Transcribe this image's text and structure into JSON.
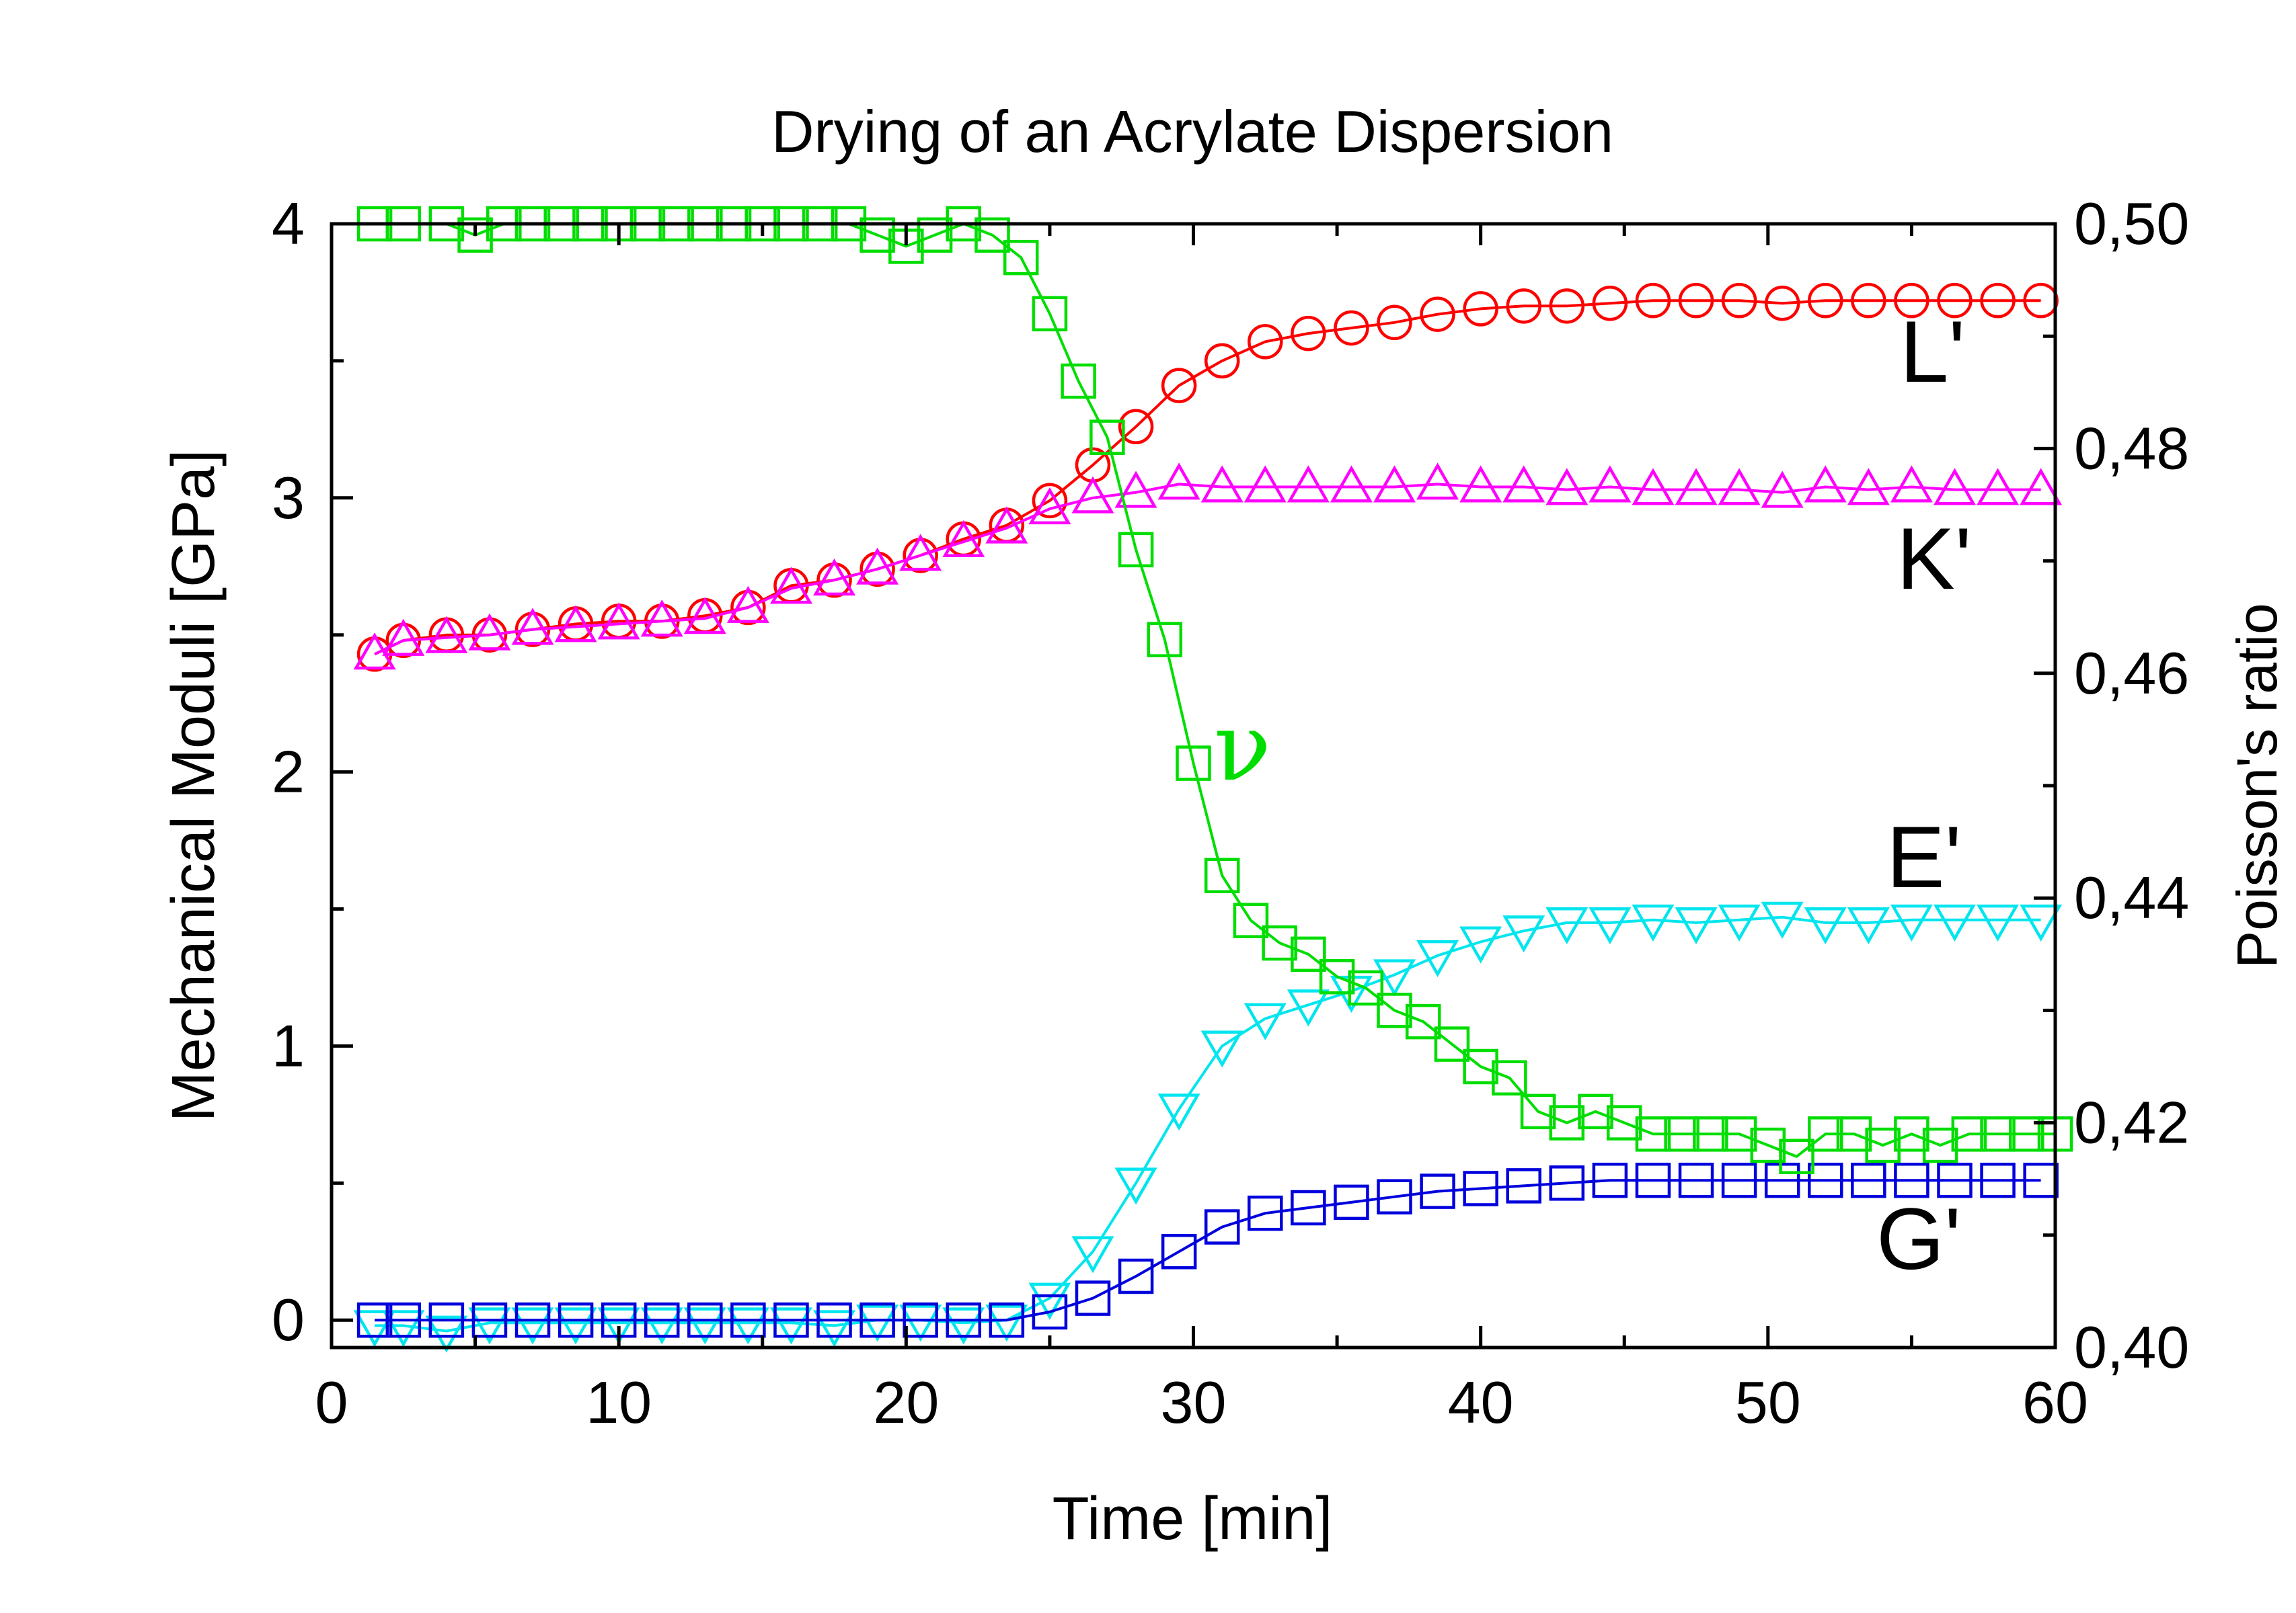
{
  "chart_data": {
    "type": "line",
    "title": "Drying of an Acrylate Dispersion",
    "xlabel": "Time [min]",
    "ylabel": "Mechanical Moduli [GPa]",
    "y2label": "Poisson's ratio",
    "xlim": [
      0,
      60
    ],
    "ylim": [
      -0.1,
      4
    ],
    "y2lim": [
      0.4,
      0.5
    ],
    "xticks": [
      0,
      10,
      20,
      30,
      40,
      50,
      60
    ],
    "yticks": [
      0,
      1,
      2,
      3,
      4
    ],
    "y2ticks": [
      "0,40",
      "0,42",
      "0,44",
      "0,46",
      "0,48",
      "0,50"
    ],
    "y2tick_values": [
      0.4,
      0.42,
      0.44,
      0.46,
      0.48,
      0.5
    ],
    "grid": false,
    "legend": "none",
    "series": [
      {
        "name": "L'",
        "axis": "left",
        "color": "#ff0000",
        "marker": "circle",
        "x": [
          1.5,
          2.5,
          4,
          5.5,
          7,
          8.5,
          10,
          11.5,
          13,
          14.5,
          16,
          17.5,
          19,
          20.5,
          22,
          23.5,
          25,
          26.5,
          28,
          29.5,
          31,
          32.5,
          34,
          35.5,
          37,
          38.5,
          40,
          41.5,
          43,
          44.5,
          46,
          47.5,
          49,
          50.5,
          52,
          53.5,
          55,
          56.5,
          58,
          59.5
        ],
        "values": [
          2.43,
          2.48,
          2.5,
          2.5,
          2.52,
          2.54,
          2.55,
          2.55,
          2.57,
          2.6,
          2.68,
          2.7,
          2.74,
          2.79,
          2.85,
          2.9,
          2.99,
          3.12,
          3.26,
          3.41,
          3.5,
          3.57,
          3.6,
          3.62,
          3.64,
          3.67,
          3.69,
          3.7,
          3.7,
          3.71,
          3.72,
          3.72,
          3.72,
          3.71,
          3.72,
          3.72,
          3.72,
          3.72,
          3.72,
          3.72
        ]
      },
      {
        "name": "K'",
        "axis": "left",
        "color": "#ff00ff",
        "marker": "triangle-up",
        "x": [
          1.5,
          2.5,
          4,
          5.5,
          7,
          8.5,
          10,
          11.5,
          13,
          14.5,
          16,
          17.5,
          19,
          20.5,
          22,
          23.5,
          25,
          26.5,
          28,
          29.5,
          31,
          32.5,
          34,
          35.5,
          37,
          38.5,
          40,
          41.5,
          43,
          44.5,
          46,
          47.5,
          49,
          50.5,
          52,
          53.5,
          55,
          56.5,
          58,
          59.5
        ],
        "values": [
          2.43,
          2.48,
          2.49,
          2.5,
          2.52,
          2.53,
          2.54,
          2.55,
          2.56,
          2.6,
          2.67,
          2.7,
          2.74,
          2.79,
          2.84,
          2.89,
          2.96,
          3.0,
          3.02,
          3.05,
          3.04,
          3.04,
          3.04,
          3.04,
          3.04,
          3.05,
          3.04,
          3.04,
          3.03,
          3.04,
          3.03,
          3.03,
          3.03,
          3.02,
          3.04,
          3.03,
          3.04,
          3.03,
          3.03,
          3.03
        ]
      },
      {
        "name": "E'",
        "axis": "left",
        "color": "#00e5ee",
        "marker": "triangle-down",
        "x": [
          1.5,
          2.5,
          4,
          5.5,
          7,
          8.5,
          10,
          11.5,
          13,
          14.5,
          16,
          17.5,
          19,
          20.5,
          22,
          23.5,
          25,
          26.5,
          28,
          29.5,
          31,
          32.5,
          34,
          35.5,
          37,
          38.5,
          40,
          41.5,
          43,
          44.5,
          46,
          47.5,
          49,
          50.5,
          52,
          53.5,
          55,
          56.5,
          58,
          59.5
        ],
        "values": [
          -0.02,
          -0.02,
          -0.04,
          -0.01,
          -0.01,
          -0.01,
          -0.01,
          -0.01,
          -0.01,
          -0.01,
          -0.01,
          -0.02,
          0.0,
          0.0,
          -0.01,
          0.0,
          0.08,
          0.25,
          0.5,
          0.77,
          1.0,
          1.1,
          1.15,
          1.2,
          1.26,
          1.33,
          1.38,
          1.42,
          1.45,
          1.45,
          1.46,
          1.45,
          1.46,
          1.47,
          1.45,
          1.45,
          1.46,
          1.46,
          1.46,
          1.46
        ]
      },
      {
        "name": "G'",
        "axis": "left",
        "color": "#0000dd",
        "marker": "square",
        "x": [
          1.5,
          2.5,
          4,
          5.5,
          7,
          8.5,
          10,
          11.5,
          13,
          14.5,
          16,
          17.5,
          19,
          20.5,
          22,
          23.5,
          25,
          26.5,
          28,
          29.5,
          31,
          32.5,
          34,
          35.5,
          37,
          38.5,
          40,
          41.5,
          43,
          44.5,
          46,
          47.5,
          49,
          50.5,
          52,
          53.5,
          55,
          56.5,
          58,
          59.5
        ],
        "values": [
          0.0,
          0.0,
          0.0,
          0.0,
          0.0,
          0.0,
          0.0,
          0.0,
          0.0,
          0.0,
          0.0,
          0.0,
          0.0,
          0.0,
          0.0,
          0.0,
          0.03,
          0.08,
          0.16,
          0.25,
          0.34,
          0.39,
          0.41,
          0.43,
          0.45,
          0.47,
          0.48,
          0.49,
          0.5,
          0.51,
          0.51,
          0.51,
          0.51,
          0.51,
          0.51,
          0.51,
          0.51,
          0.51,
          0.51,
          0.51
        ]
      },
      {
        "name": "ν",
        "axis": "right",
        "color": "#00dd00",
        "marker": "square",
        "x": [
          1.5,
          2.5,
          4,
          5,
          6,
          7,
          8,
          9,
          10,
          11,
          12,
          13,
          14,
          15,
          16,
          17,
          18,
          19,
          20,
          21,
          22,
          23,
          24,
          25,
          26,
          27,
          28,
          29,
          30,
          31,
          32,
          33,
          34,
          35,
          36,
          37,
          38,
          39,
          40,
          41,
          42,
          43,
          44,
          45,
          46,
          47,
          48,
          49,
          50,
          51,
          52,
          53,
          54,
          55,
          56,
          57,
          58,
          59,
          60
        ],
        "values": [
          0.5,
          0.5,
          0.5,
          0.499,
          0.5,
          0.5,
          0.5,
          0.5,
          0.5,
          0.5,
          0.5,
          0.5,
          0.5,
          0.5,
          0.5,
          0.5,
          0.5,
          0.499,
          0.498,
          0.499,
          0.5,
          0.499,
          0.497,
          0.492,
          0.486,
          0.481,
          0.471,
          0.463,
          0.452,
          0.442,
          0.438,
          0.436,
          0.435,
          0.433,
          0.432,
          0.43,
          0.429,
          0.427,
          0.425,
          0.424,
          0.421,
          0.42,
          0.421,
          0.42,
          0.419,
          0.419,
          0.419,
          0.419,
          0.418,
          0.417,
          0.419,
          0.419,
          0.418,
          0.419,
          0.418,
          0.419,
          0.419,
          0.419,
          0.419
        ]
      }
    ],
    "curve_labels": [
      {
        "text": "L'",
        "color": "#ff0000"
      },
      {
        "text": "K'",
        "color": "#ff00ff"
      },
      {
        "text": "ν",
        "color": "#00dd00"
      },
      {
        "text": "E'",
        "color": "#00e5ee"
      },
      {
        "text": "G'",
        "color": "#0000dd"
      }
    ]
  }
}
